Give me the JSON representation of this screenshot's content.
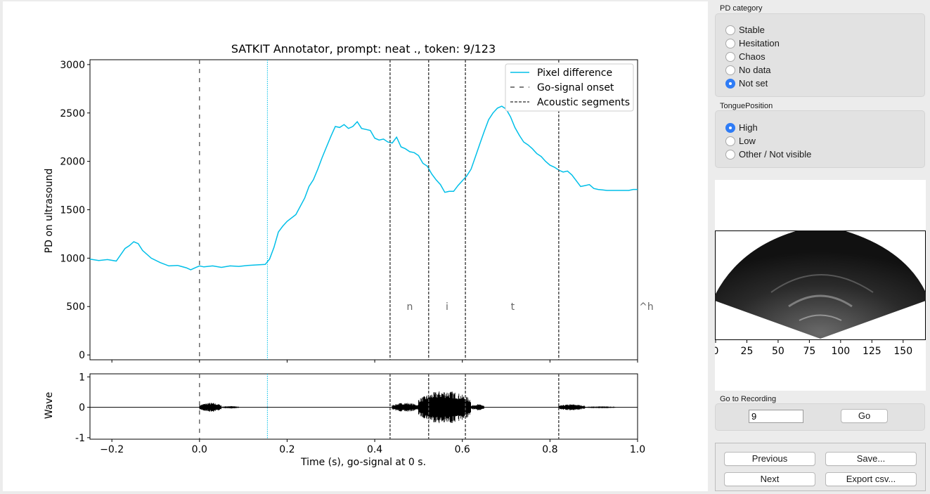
{
  "plot": {
    "title": "SATKIT Annotator, prompt: neat ., token: 9/123",
    "top_ylabel": "PD on ultrasound",
    "bottom_ylabel": "Wave",
    "xlabel": "Time (s), go-signal at 0 s.",
    "legend": [
      "Pixel difference",
      "Go-signal onset",
      "Acoustic segments"
    ],
    "segment_labels": [
      "n",
      "i",
      "t",
      "^h"
    ]
  },
  "chart_data": [
    {
      "type": "line",
      "title": "SATKIT Annotator, prompt: neat ., token: 9/123",
      "xlabel": "",
      "ylabel": "PD on ultrasound",
      "xlim": [
        -0.25,
        1.0
      ],
      "ylim": [
        -50,
        3050
      ],
      "yticks": [
        0,
        500,
        1000,
        1500,
        2000,
        2500,
        3000
      ],
      "grid": false,
      "legend_position": "top-right",
      "series": [
        {
          "name": "Pixel difference",
          "color": "#00bfe8",
          "x": [
            -0.25,
            -0.23,
            -0.21,
            -0.19,
            -0.17,
            -0.16,
            -0.15,
            -0.14,
            -0.13,
            -0.11,
            -0.09,
            -0.07,
            -0.05,
            -0.03,
            -0.02,
            -0.01,
            0.0,
            0.01,
            0.03,
            0.05,
            0.07,
            0.09,
            0.11,
            0.13,
            0.15,
            0.16,
            0.17,
            0.18,
            0.19,
            0.2,
            0.22,
            0.24,
            0.25,
            0.26,
            0.27,
            0.28,
            0.29,
            0.3,
            0.31,
            0.32,
            0.33,
            0.34,
            0.35,
            0.36,
            0.37,
            0.38,
            0.39,
            0.4,
            0.41,
            0.42,
            0.43,
            0.44,
            0.45,
            0.46,
            0.47,
            0.48,
            0.49,
            0.5,
            0.51,
            0.52,
            0.53,
            0.54,
            0.55,
            0.56,
            0.57,
            0.58,
            0.59,
            0.6,
            0.61,
            0.62,
            0.63,
            0.64,
            0.65,
            0.66,
            0.67,
            0.68,
            0.69,
            0.7,
            0.71,
            0.72,
            0.73,
            0.74,
            0.75,
            0.76,
            0.77,
            0.78,
            0.79,
            0.8,
            0.81,
            0.82,
            0.83,
            0.84,
            0.85,
            0.86,
            0.87,
            0.88,
            0.89,
            0.9,
            0.91,
            0.92,
            0.93,
            0.94,
            0.95,
            0.96,
            0.97,
            0.98,
            0.99,
            1.0
          ],
          "y": [
            990,
            975,
            985,
            970,
            1100,
            1130,
            1170,
            1150,
            1080,
            1000,
            955,
            920,
            925,
            900,
            880,
            900,
            920,
            910,
            920,
            905,
            920,
            915,
            925,
            930,
            935,
            990,
            1110,
            1270,
            1330,
            1380,
            1450,
            1620,
            1740,
            1810,
            1920,
            2040,
            2150,
            2260,
            2360,
            2350,
            2380,
            2340,
            2360,
            2410,
            2340,
            2330,
            2320,
            2240,
            2220,
            2230,
            2200,
            2190,
            2250,
            2150,
            2130,
            2100,
            2090,
            2060,
            1980,
            1950,
            1870,
            1810,
            1760,
            1680,
            1690,
            1690,
            1750,
            1800,
            1850,
            1920,
            2050,
            2180,
            2310,
            2430,
            2500,
            2550,
            2570,
            2540,
            2460,
            2350,
            2270,
            2200,
            2170,
            2130,
            2080,
            2050,
            2000,
            1960,
            1940,
            1910,
            1890,
            1900,
            1860,
            1800,
            1740,
            1750,
            1760,
            1720,
            1710,
            1705,
            1700,
            1700,
            1700,
            1700,
            1700,
            1700,
            1710,
            1710
          ]
        }
      ]
    },
    {
      "type": "line",
      "title": "",
      "xlabel": "Time (s), go-signal at 0 s.",
      "ylabel": "Wave",
      "xlim": [
        -0.25,
        1.0
      ],
      "ylim": [
        -1.05,
        1.1
      ],
      "xticks": [
        -0.2,
        0.0,
        0.2,
        0.4,
        0.6,
        0.8,
        1.0
      ],
      "yticks": [
        -1,
        0,
        1
      ],
      "series": [
        {
          "color": "#000000",
          "envelope": [
            {
              "x": [
                0.0,
                0.05
              ],
              "amplitude": 0.15
            },
            {
              "x": [
                0.05,
                0.09
              ],
              "amplitude": 0.04
            },
            {
              "x": [
                0.44,
                0.5
              ],
              "amplitude": 0.15
            },
            {
              "x": [
                0.5,
                0.62
              ],
              "amplitude": 0.55
            },
            {
              "x": [
                0.62,
                0.65
              ],
              "amplitude": 0.1
            },
            {
              "x": [
                0.82,
                0.88
              ],
              "amplitude": 0.1
            },
            {
              "x": [
                0.88,
                0.95
              ],
              "amplitude": 0.03
            }
          ]
        }
      ]
    }
  ],
  "markers": {
    "go_signal": 0.0,
    "cursor": 0.155,
    "segment_boundaries": [
      0.435,
      0.523,
      0.607,
      0.82
    ],
    "segment_label_x": [
      0.48,
      0.565,
      0.715,
      1.02
    ],
    "segment_label_y": 500,
    "colors": {
      "go": "#555555",
      "cursor": "#00bfe8",
      "segments": "#4d4d4d"
    }
  },
  "panel": {
    "pd_category": {
      "title": "PD category",
      "options": [
        "Stable",
        "Hesitation",
        "Chaos",
        "No data",
        "Not set"
      ],
      "selected": "Not set"
    },
    "tongue_position": {
      "title": "TonguePosition",
      "options": [
        "High",
        "Low",
        "Other / Not visible"
      ],
      "selected": "High"
    },
    "ultrasound": {
      "xticks": [
        "0",
        "25",
        "50",
        "75",
        "100",
        "125",
        "150"
      ]
    },
    "go_to_recording": {
      "title": "Go to Recording",
      "value": "9",
      "button": "Go"
    },
    "nav": {
      "previous": "Previous",
      "save": "Save...",
      "next": "Next",
      "export": "Export csv..."
    },
    "accent": "#2f7cf6"
  }
}
